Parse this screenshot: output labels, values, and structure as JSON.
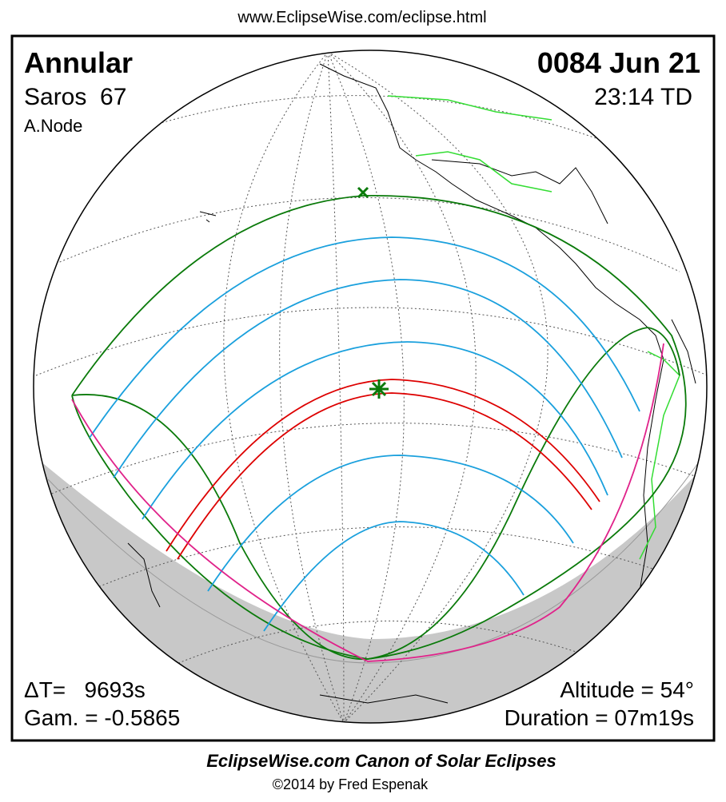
{
  "header": {
    "url": "www.EclipseWise.com/eclipse.html"
  },
  "eclipse": {
    "type": "Annular",
    "date": "0084 Jun 21",
    "saros": "Saros  67",
    "time": "23:14 TD",
    "node": "A.Node",
    "delta_t": "ΔT=   9693s",
    "gamma": "Gam. = -0.5865",
    "altitude": "Altitude = 54°",
    "duration": "Duration = 07m19s"
  },
  "footer": {
    "title": "EclipseWise.com Canon of Solar Eclipses",
    "copyright": "©2014 by Fred Espenak"
  }
}
